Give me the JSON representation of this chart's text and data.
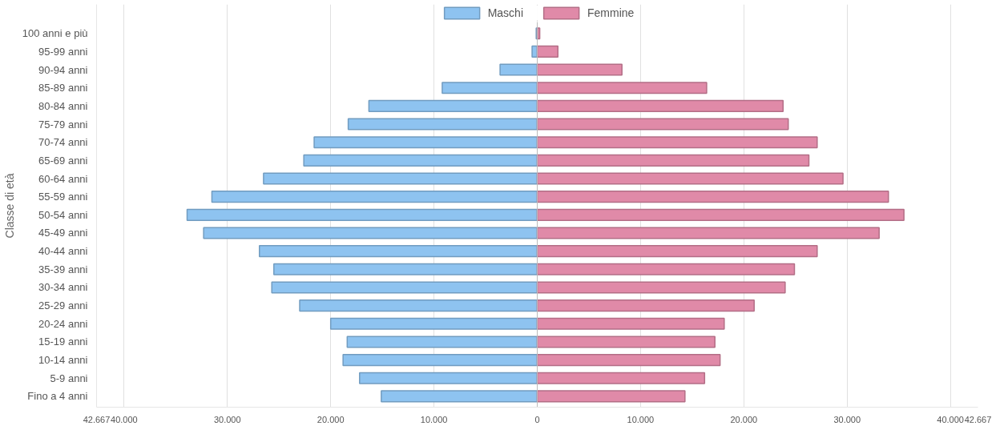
{
  "chart_data": {
    "type": "bar",
    "orientation": "horizontal",
    "ylabel": "Classe di età",
    "categories": [
      "100 anni e più",
      "95-99 anni",
      "90-94 anni",
      "85-89 anni",
      "80-84 anni",
      "75-79 anni",
      "70-74 anni",
      "65-69 anni",
      "60-64 anni",
      "55-59 anni",
      "50-54 anni",
      "45-49 anni",
      "40-44 anni",
      "35-39 anni",
      "30-34 anni",
      "25-29 anni",
      "20-24 anni",
      "15-19 anni",
      "10-14 anni",
      "5-9 anni",
      "Fino a 4 anni"
    ],
    "series": [
      {
        "name": "Maschi",
        "color": "#8ec3f0",
        "values": [
          -100,
          -500,
          -3600,
          -9200,
          -16300,
          -18300,
          -21600,
          -22600,
          -26500,
          -31500,
          -33900,
          -32300,
          -26900,
          -25500,
          -25700,
          -23000,
          -20000,
          -18400,
          -18800,
          -17200,
          -15100
        ]
      },
      {
        "name": "Femmine",
        "color": "#e08aa8",
        "values": [
          240,
          2000,
          8200,
          16400,
          23800,
          24300,
          27100,
          26300,
          29600,
          34000,
          35500,
          33100,
          27100,
          24900,
          24000,
          21000,
          18100,
          17200,
          17700,
          16200,
          14300
        ]
      }
    ],
    "xlim": [
      -42667,
      42667
    ],
    "xticks": [
      {
        "value": -42667,
        "label": "42.667"
      },
      {
        "value": -40000,
        "label": "40.000"
      },
      {
        "value": -30000,
        "label": "30.000"
      },
      {
        "value": -20000,
        "label": "20.000"
      },
      {
        "value": -10000,
        "label": "10.000"
      },
      0,
      {
        "value": 10000,
        "label": "10.000"
      },
      {
        "value": 20000,
        "label": "20.000"
      },
      {
        "value": 30000,
        "label": "30.000"
      },
      {
        "value": 40000,
        "label": "40.000"
      },
      {
        "value": 42667,
        "label": "42.667"
      }
    ],
    "grid": "x",
    "legend": "top",
    "stacked": true
  }
}
